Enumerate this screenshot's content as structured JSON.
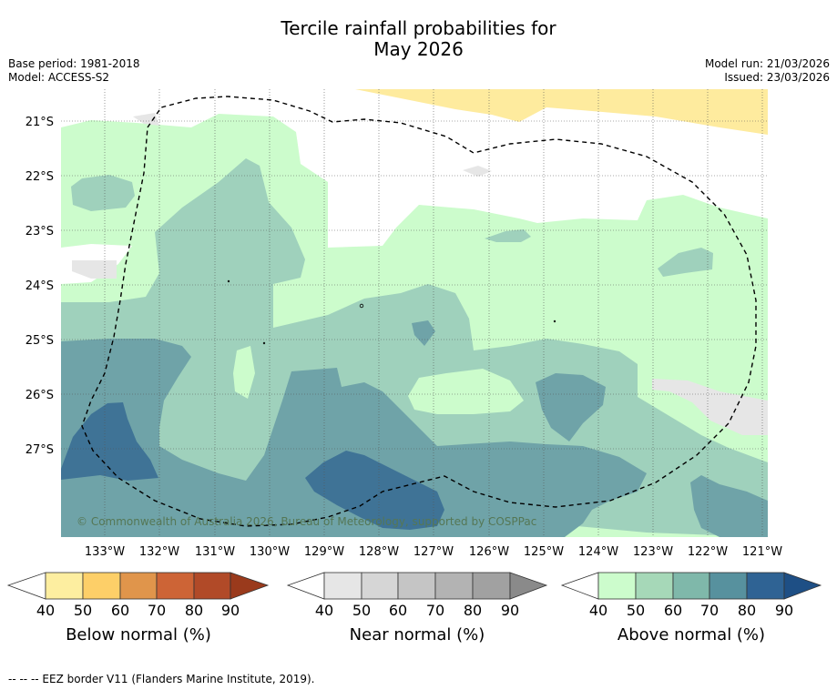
{
  "title": {
    "line1": "Tercile rainfall probabilities for",
    "line2": "May 2026"
  },
  "info": {
    "base_period": "Base period: 1981-2018",
    "model": "Model: ACCESS-S2",
    "model_run": "Model run: 21/03/2026",
    "issued": "Issued: 23/03/2026"
  },
  "map": {
    "copyright": "© Commonwealth of Australia 2026, Bureau of Meteorology, supported by COSPPac",
    "lat_labels": [
      "21°S",
      "22°S",
      "23°S",
      "24°S",
      "25°S",
      "26°S",
      "27°S"
    ],
    "lon_labels": [
      "133°W",
      "132°W",
      "131°W",
      "130°W",
      "129°W",
      "128°W",
      "127°W",
      "126°W",
      "125°W",
      "124°W",
      "123°W",
      "122°W",
      "121°W"
    ]
  },
  "legends": [
    {
      "label": "Below normal (%)",
      "ticks": [
        "40",
        "50",
        "60",
        "70",
        "80",
        "90"
      ],
      "colors": [
        "#fdeea0",
        "#fdcf68",
        "#e0954b",
        "#cd6436",
        "#b14a28",
        "#9a3a1c"
      ]
    },
    {
      "label": "Near normal (%)",
      "ticks": [
        "40",
        "50",
        "60",
        "70",
        "80",
        "90"
      ],
      "colors": [
        "#e6e6e6",
        "#d6d6d6",
        "#c5c5c5",
        "#b3b3b3",
        "#a1a1a1",
        "#8a8a8a"
      ]
    },
    {
      "label": "Above normal (%)",
      "ticks": [
        "40",
        "50",
        "60",
        "70",
        "80",
        "90"
      ],
      "colors": [
        "#ccfccc",
        "#a6d8b8",
        "#7fb8aa",
        "#57919e",
        "#2f6394",
        "#1e4f85"
      ]
    }
  ],
  "footer": "--  --  -- EEZ border V11 (Flanders Marine Institute, 2019).",
  "colors": {
    "above_40": "#ccfccc",
    "above_50": "#9fd1bc",
    "above_60": "#6fa3a8",
    "above_70": "#3f7396",
    "below_40": "#feeb9e",
    "near_40": "#e6e6e6"
  }
}
